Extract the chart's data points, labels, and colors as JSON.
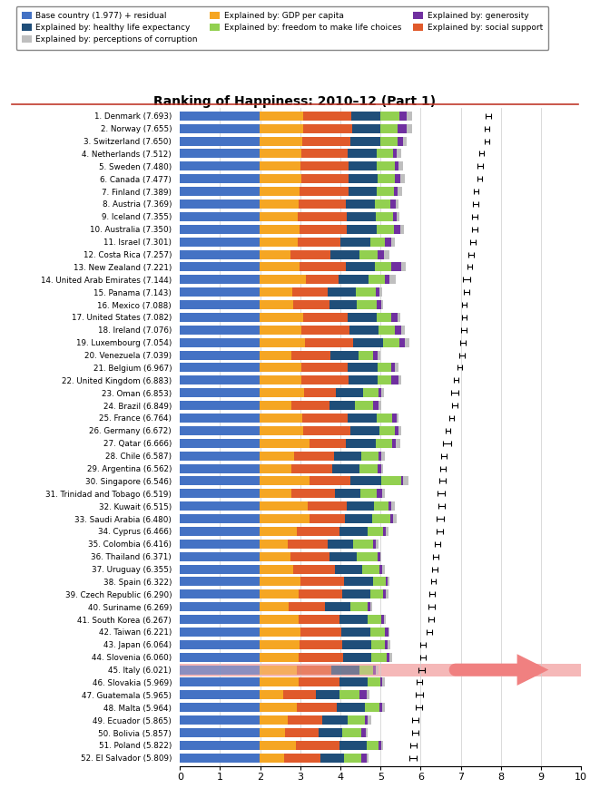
{
  "title": "Ranking of Happiness: 2010–12 (Part 1)",
  "countries": [
    "1. Denmark (7.693)",
    "2. Norway (7.655)",
    "3. Switzerland (7.650)",
    "4. Netherlands (7.512)",
    "5. Sweden (7.480)",
    "6. Canada (7.477)",
    "7. Finland (7.389)",
    "8. Austria (7.369)",
    "9. Iceland (7.355)",
    "10. Australia (7.350)",
    "11. Israel (7.301)",
    "12. Costa Rica (7.257)",
    "13. New Zealand (7.221)",
    "14. United Arab Emirates (7.144)",
    "15. Panama (7.143)",
    "16. Mexico (7.088)",
    "17. United States (7.082)",
    "18. Ireland (7.076)",
    "19. Luxembourg (7.054)",
    "20. Venezuela (7.039)",
    "21. Belgium (6.967)",
    "22. United Kingdom (6.883)",
    "23. Oman (6.853)",
    "24. Brazil (6.849)",
    "25. France (6.764)",
    "26. Germany (6.672)",
    "27. Qatar (6.666)",
    "28. Chile (6.587)",
    "29. Argentina (6.562)",
    "30. Singapore (6.546)",
    "31. Trinidad and Tobago (6.519)",
    "32. Kuwait (6.515)",
    "33. Saudi Arabia (6.480)",
    "34. Cyprus (6.466)",
    "35. Colombia (6.416)",
    "36. Thailand (6.371)",
    "37. Uruguay (6.355)",
    "38. Spain (6.322)",
    "39. Czech Republic (6.290)",
    "40. Suriname (6.269)",
    "41. South Korea (6.267)",
    "42. Taiwan (6.221)",
    "43. Japan (6.064)",
    "44. Slovenia (6.060)",
    "45. Italy (6.021)",
    "46. Slovakia (5.969)",
    "47. Guatemala (5.965)",
    "48. Malta (5.964)",
    "49. Ecuador (5.865)",
    "50. Bolivia (5.857)",
    "51. Poland (5.822)",
    "52. El Salvador (5.809)"
  ],
  "scores": [
    7.693,
    7.655,
    7.65,
    7.512,
    7.48,
    7.477,
    7.389,
    7.369,
    7.355,
    7.35,
    7.301,
    7.257,
    7.221,
    7.144,
    7.143,
    7.088,
    7.082,
    7.076,
    7.054,
    7.039,
    6.967,
    6.883,
    6.853,
    6.849,
    6.764,
    6.672,
    6.666,
    6.587,
    6.562,
    6.546,
    6.519,
    6.515,
    6.48,
    6.466,
    6.416,
    6.371,
    6.355,
    6.322,
    6.29,
    6.269,
    6.267,
    6.221,
    6.064,
    6.06,
    6.021,
    5.969,
    5.965,
    5.964,
    5.865,
    5.857,
    5.822,
    5.809
  ],
  "segments": {
    "base": [
      1.977,
      1.977,
      1.977,
      1.977,
      1.977,
      1.977,
      1.977,
      1.977,
      1.977,
      1.977,
      1.977,
      1.977,
      1.977,
      1.977,
      1.977,
      1.977,
      1.977,
      1.977,
      1.977,
      1.977,
      1.977,
      1.977,
      1.977,
      1.977,
      1.977,
      1.977,
      1.977,
      1.977,
      1.977,
      1.977,
      1.977,
      1.977,
      1.977,
      1.977,
      1.977,
      1.977,
      1.977,
      1.977,
      1.977,
      1.977,
      1.977,
      1.977,
      1.977,
      1.977,
      1.977,
      1.977,
      1.977,
      1.977,
      1.977,
      1.977,
      1.977,
      1.977
    ],
    "gdp": [
      1.1,
      1.09,
      1.08,
      1.04,
      1.02,
      1.04,
      1.0,
      0.98,
      0.95,
      1.01,
      0.95,
      0.78,
      1.01,
      1.17,
      0.83,
      0.85,
      1.09,
      1.04,
      1.15,
      0.79,
      1.05,
      1.05,
      1.11,
      0.8,
      1.08,
      1.1,
      1.26,
      0.87,
      0.79,
      1.26,
      0.79,
      1.21,
      1.25,
      0.93,
      0.72,
      0.77,
      0.85,
      1.02,
      0.98,
      0.74,
      0.98,
      1.02,
      1.01,
      0.98,
      0.93,
      0.97,
      0.6,
      0.93,
      0.7,
      0.65,
      0.91,
      0.63
    ],
    "social": [
      1.2,
      1.22,
      1.19,
      1.17,
      1.2,
      1.18,
      1.22,
      1.17,
      1.24,
      1.18,
      1.07,
      1.0,
      1.15,
      0.8,
      0.88,
      0.89,
      1.12,
      1.2,
      1.19,
      0.99,
      1.16,
      1.17,
      0.8,
      0.94,
      1.12,
      1.17,
      0.9,
      0.99,
      1.03,
      1.02,
      1.09,
      0.96,
      0.88,
      1.06,
      0.99,
      0.99,
      1.04,
      1.1,
      1.09,
      0.89,
      1.01,
      1.02,
      1.05,
      1.1,
      0.87,
      1.04,
      0.82,
      1.01,
      0.88,
      0.83,
      1.08,
      0.9
    ],
    "health": [
      0.72,
      0.7,
      0.74,
      0.72,
      0.71,
      0.72,
      0.7,
      0.73,
      0.72,
      0.73,
      0.75,
      0.72,
      0.73,
      0.76,
      0.7,
      0.7,
      0.72,
      0.73,
      0.74,
      0.69,
      0.73,
      0.73,
      0.67,
      0.64,
      0.73,
      0.73,
      0.74,
      0.68,
      0.68,
      0.77,
      0.64,
      0.69,
      0.68,
      0.72,
      0.63,
      0.68,
      0.68,
      0.71,
      0.7,
      0.64,
      0.71,
      0.72,
      0.73,
      0.71,
      0.7,
      0.69,
      0.59,
      0.69,
      0.63,
      0.58,
      0.68,
      0.59
    ],
    "freedom": [
      0.48,
      0.44,
      0.44,
      0.4,
      0.44,
      0.43,
      0.44,
      0.39,
      0.43,
      0.43,
      0.37,
      0.45,
      0.39,
      0.41,
      0.49,
      0.49,
      0.37,
      0.41,
      0.41,
      0.37,
      0.36,
      0.35,
      0.4,
      0.45,
      0.39,
      0.38,
      0.42,
      0.44,
      0.44,
      0.48,
      0.41,
      0.35,
      0.45,
      0.38,
      0.5,
      0.5,
      0.43,
      0.32,
      0.32,
      0.42,
      0.33,
      0.37,
      0.35,
      0.39,
      0.33,
      0.31,
      0.49,
      0.37,
      0.42,
      0.49,
      0.31,
      0.43
    ],
    "generosity": [
      0.18,
      0.22,
      0.13,
      0.1,
      0.11,
      0.15,
      0.09,
      0.13,
      0.08,
      0.17,
      0.15,
      0.16,
      0.25,
      0.11,
      0.1,
      0.12,
      0.15,
      0.16,
      0.14,
      0.12,
      0.08,
      0.16,
      0.07,
      0.14,
      0.1,
      0.09,
      0.08,
      0.07,
      0.09,
      0.06,
      0.14,
      0.08,
      0.07,
      0.07,
      0.07,
      0.07,
      0.07,
      0.05,
      0.06,
      0.07,
      0.07,
      0.08,
      0.06,
      0.07,
      0.08,
      0.06,
      0.18,
      0.07,
      0.08,
      0.1,
      0.05,
      0.12
    ],
    "corruption": [
      0.12,
      0.13,
      0.1,
      0.1,
      0.1,
      0.1,
      0.11,
      0.08,
      0.08,
      0.09,
      0.08,
      0.14,
      0.11,
      0.15,
      0.06,
      0.04,
      0.07,
      0.08,
      0.11,
      0.06,
      0.09,
      0.07,
      0.06,
      0.06,
      0.06,
      0.07,
      0.11,
      0.07,
      0.06,
      0.13,
      0.06,
      0.09,
      0.09,
      0.06,
      0.06,
      0.04,
      0.06,
      0.05,
      0.06,
      0.06,
      0.06,
      0.04,
      0.06,
      0.06,
      0.07,
      0.06,
      0.07,
      0.06,
      0.07,
      0.05,
      0.05,
      0.06
    ]
  },
  "errors": [
    0.07,
    0.06,
    0.06,
    0.06,
    0.06,
    0.06,
    0.06,
    0.06,
    0.07,
    0.06,
    0.07,
    0.07,
    0.06,
    0.08,
    0.07,
    0.06,
    0.06,
    0.07,
    0.07,
    0.07,
    0.06,
    0.06,
    0.09,
    0.07,
    0.06,
    0.06,
    0.1,
    0.07,
    0.07,
    0.07,
    0.09,
    0.08,
    0.09,
    0.08,
    0.07,
    0.07,
    0.07,
    0.06,
    0.07,
    0.08,
    0.07,
    0.07,
    0.07,
    0.07,
    0.08,
    0.07,
    0.09,
    0.08,
    0.08,
    0.08,
    0.07,
    0.08
  ],
  "colors": {
    "base": "#4472C4",
    "gdp": "#F5A623",
    "social": "#E05A2B",
    "health": "#1F4E79",
    "freedom": "#92D050",
    "generosity": "#7030A0",
    "corruption": "#BFBFBF"
  },
  "legend_order": [
    "base",
    "health",
    "corruption",
    "gdp",
    "freedom",
    "generosity",
    "social"
  ],
  "legend_labels": {
    "base": "Base country (1.977) + residual",
    "gdp": "Explained by: GDP per capita",
    "social": "Explained by: social support",
    "health": "Explained by: healthy life expectancy",
    "freedom": "Explained by: freedom to make life choices",
    "generosity": "Explained by: generosity",
    "corruption": "Explained by: perceptions of corruption"
  },
  "segments_order": [
    "base",
    "gdp",
    "social",
    "health",
    "freedom",
    "generosity",
    "corruption"
  ],
  "highlighted_row": 44,
  "highlight_bg": "#F5B8B8",
  "highlight_arrow": "#F08080",
  "xlim": [
    0,
    10
  ],
  "xticks": [
    0,
    1,
    2,
    3,
    4,
    5,
    6,
    7,
    8,
    9,
    10
  ],
  "bar_height": 0.72,
  "figsize": [
    6.5,
    8.8
  ],
  "dpi": 100
}
